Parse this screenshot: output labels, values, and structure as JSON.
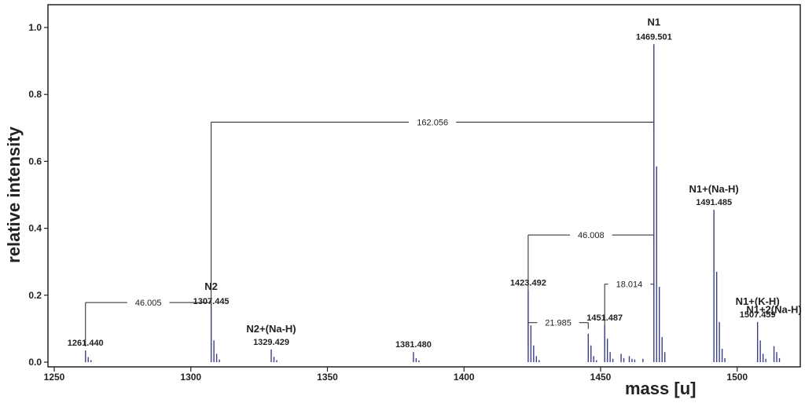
{
  "chart_data": {
    "type": "bar",
    "xlabel": "mass [u]",
    "ylabel": "relative intensity",
    "xlim": [
      1248,
      1524
    ],
    "ylim": [
      0,
      1.0
    ],
    "xticks": [
      1250,
      1300,
      1350,
      1400,
      1450,
      1500
    ],
    "yticks": [
      "0.0",
      "0.2",
      "0.4",
      "0.6",
      "0.8",
      "1.0"
    ],
    "yticks_values": [
      0,
      0.2,
      0.4,
      0.6,
      0.8,
      1.0
    ],
    "grid": false,
    "bar_color": "#3b3f86",
    "peaks": [
      {
        "x": 1261.44,
        "y": 0.035
      },
      {
        "x": 1262.44,
        "y": 0.015
      },
      {
        "x": 1263.44,
        "y": 0.006
      },
      {
        "x": 1307.445,
        "y": 0.16
      },
      {
        "x": 1308.45,
        "y": 0.065
      },
      {
        "x": 1309.45,
        "y": 0.025
      },
      {
        "x": 1310.45,
        "y": 0.008
      },
      {
        "x": 1329.429,
        "y": 0.038
      },
      {
        "x": 1330.43,
        "y": 0.016
      },
      {
        "x": 1331.43,
        "y": 0.006
      },
      {
        "x": 1381.48,
        "y": 0.03
      },
      {
        "x": 1382.48,
        "y": 0.012
      },
      {
        "x": 1383.48,
        "y": 0.005
      },
      {
        "x": 1423.492,
        "y": 0.215
      },
      {
        "x": 1424.49,
        "y": 0.11
      },
      {
        "x": 1425.49,
        "y": 0.05
      },
      {
        "x": 1426.49,
        "y": 0.018
      },
      {
        "x": 1427.49,
        "y": 0.006
      },
      {
        "x": 1445.48,
        "y": 0.085
      },
      {
        "x": 1446.48,
        "y": 0.05
      },
      {
        "x": 1447.48,
        "y": 0.018
      },
      {
        "x": 1448.48,
        "y": 0.006
      },
      {
        "x": 1451.487,
        "y": 0.11
      },
      {
        "x": 1452.49,
        "y": 0.07
      },
      {
        "x": 1453.49,
        "y": 0.03
      },
      {
        "x": 1454.49,
        "y": 0.01
      },
      {
        "x": 1457.5,
        "y": 0.025
      },
      {
        "x": 1458.5,
        "y": 0.012
      },
      {
        "x": 1460.5,
        "y": 0.018
      },
      {
        "x": 1461.5,
        "y": 0.01
      },
      {
        "x": 1462.5,
        "y": 0.008
      },
      {
        "x": 1465.5,
        "y": 0.01
      },
      {
        "x": 1469.501,
        "y": 0.95
      },
      {
        "x": 1470.5,
        "y": 0.585
      },
      {
        "x": 1471.5,
        "y": 0.225
      },
      {
        "x": 1472.5,
        "y": 0.075
      },
      {
        "x": 1473.5,
        "y": 0.03
      },
      {
        "x": 1491.485,
        "y": 0.455
      },
      {
        "x": 1492.49,
        "y": 0.27
      },
      {
        "x": 1493.49,
        "y": 0.12
      },
      {
        "x": 1494.49,
        "y": 0.04
      },
      {
        "x": 1495.49,
        "y": 0.012
      },
      {
        "x": 1507.459,
        "y": 0.12
      },
      {
        "x": 1508.46,
        "y": 0.065
      },
      {
        "x": 1509.46,
        "y": 0.025
      },
      {
        "x": 1510.46,
        "y": 0.01
      },
      {
        "x": 1513.47,
        "y": 0.048
      },
      {
        "x": 1514.47,
        "y": 0.03
      },
      {
        "x": 1515.47,
        "y": 0.012
      }
    ],
    "peak_labels": [
      {
        "text": "1261.440",
        "x": 1261.44,
        "y": 0.035
      },
      {
        "text": "1307.445",
        "x": 1307.445,
        "y": 0.16
      },
      {
        "text": "1329.429",
        "x": 1329.429,
        "y": 0.038
      },
      {
        "text": "1381.480",
        "x": 1381.48,
        "y": 0.03
      },
      {
        "text": "1423.492",
        "x": 1423.492,
        "y": 0.215
      },
      {
        "text": "1451.487",
        "x": 1451.487,
        "y": 0.11
      },
      {
        "text": "1469.501",
        "x": 1469.501,
        "y": 0.95
      },
      {
        "text": "1491.485",
        "x": 1491.485,
        "y": 0.455
      },
      {
        "text": "1507.459",
        "x": 1507.459,
        "y": 0.12
      }
    ],
    "ion_labels": [
      {
        "text": "N1",
        "x": 1469.501,
        "y": 0.95
      },
      {
        "text": "N2",
        "x": 1307.445,
        "y": 0.16
      },
      {
        "text": "N1+(Na-H)",
        "x": 1491.485,
        "y": 0.455
      },
      {
        "text": "N2+(Na-H)",
        "x": 1329.429,
        "y": 0.038
      },
      {
        "text": "N1+(K-H)",
        "x": 1507.459,
        "y": 0.12
      },
      {
        "text": "N1+2(Na-H)",
        "x": 1513.47,
        "y": 0.048
      }
    ],
    "mass_differences": [
      {
        "text": "46.005",
        "x1": 1261.44,
        "x2": 1307.445,
        "y": 0.178
      },
      {
        "text": "162.056",
        "x1": 1307.445,
        "x2": 1469.501,
        "y": 0.717
      },
      {
        "text": "46.008",
        "x1": 1423.492,
        "x2": 1469.501,
        "y": 0.38
      },
      {
        "text": "21.985",
        "x1": 1423.492,
        "x2": 1445.48,
        "y": 0.118
      },
      {
        "text": "18.014",
        "x1": 1451.487,
        "x2": 1469.501,
        "y": 0.233
      }
    ]
  }
}
